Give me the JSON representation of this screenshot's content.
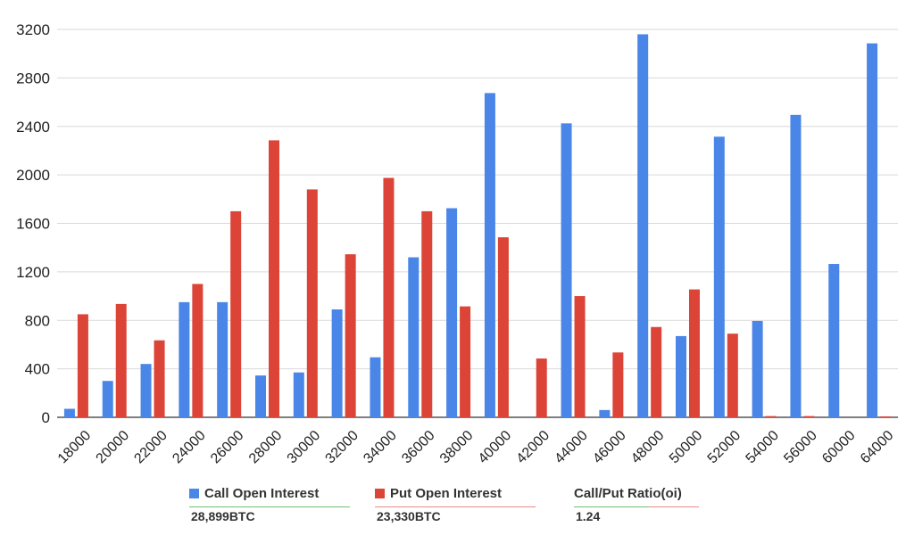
{
  "chart_data": {
    "type": "bar",
    "categories": [
      "18000",
      "20000",
      "22000",
      "24000",
      "26000",
      "28000",
      "30000",
      "32000",
      "34000",
      "36000",
      "38000",
      "40000",
      "42000",
      "44000",
      "46000",
      "48000",
      "50000",
      "52000",
      "54000",
      "56000",
      "60000",
      "64000"
    ],
    "series": [
      {
        "name": "Call Open Interest",
        "color": "#4a86e8",
        "values": [
          70,
          300,
          440,
          950,
          950,
          345,
          370,
          890,
          495,
          1320,
          1725,
          2675,
          0,
          2425,
          60,
          3160,
          670,
          2315,
          795,
          2495,
          1265,
          3085
        ]
      },
      {
        "name": "Put Open Interest",
        "color": "#db4437",
        "values": [
          850,
          935,
          635,
          1100,
          1700,
          2285,
          1880,
          1345,
          1975,
          1700,
          915,
          1485,
          485,
          1000,
          535,
          745,
          1055,
          690,
          10,
          10,
          0,
          5
        ]
      }
    ],
    "yticks": [
      "0",
      "400",
      "800",
      "1200",
      "1600",
      "2000",
      "2400",
      "2800",
      "3200"
    ],
    "ylim": [
      0,
      3200
    ],
    "grid": true,
    "legend_position": "bottom"
  },
  "legend": {
    "call": {
      "label": "Call Open Interest",
      "value": "28,899BTC",
      "color": "#4a86e8"
    },
    "put": {
      "label": "Put Open Interest",
      "value": "23,330BTC",
      "color": "#db4437"
    },
    "ratio": {
      "label": "Call/Put Ratio(oi)",
      "value": "1.24"
    }
  }
}
